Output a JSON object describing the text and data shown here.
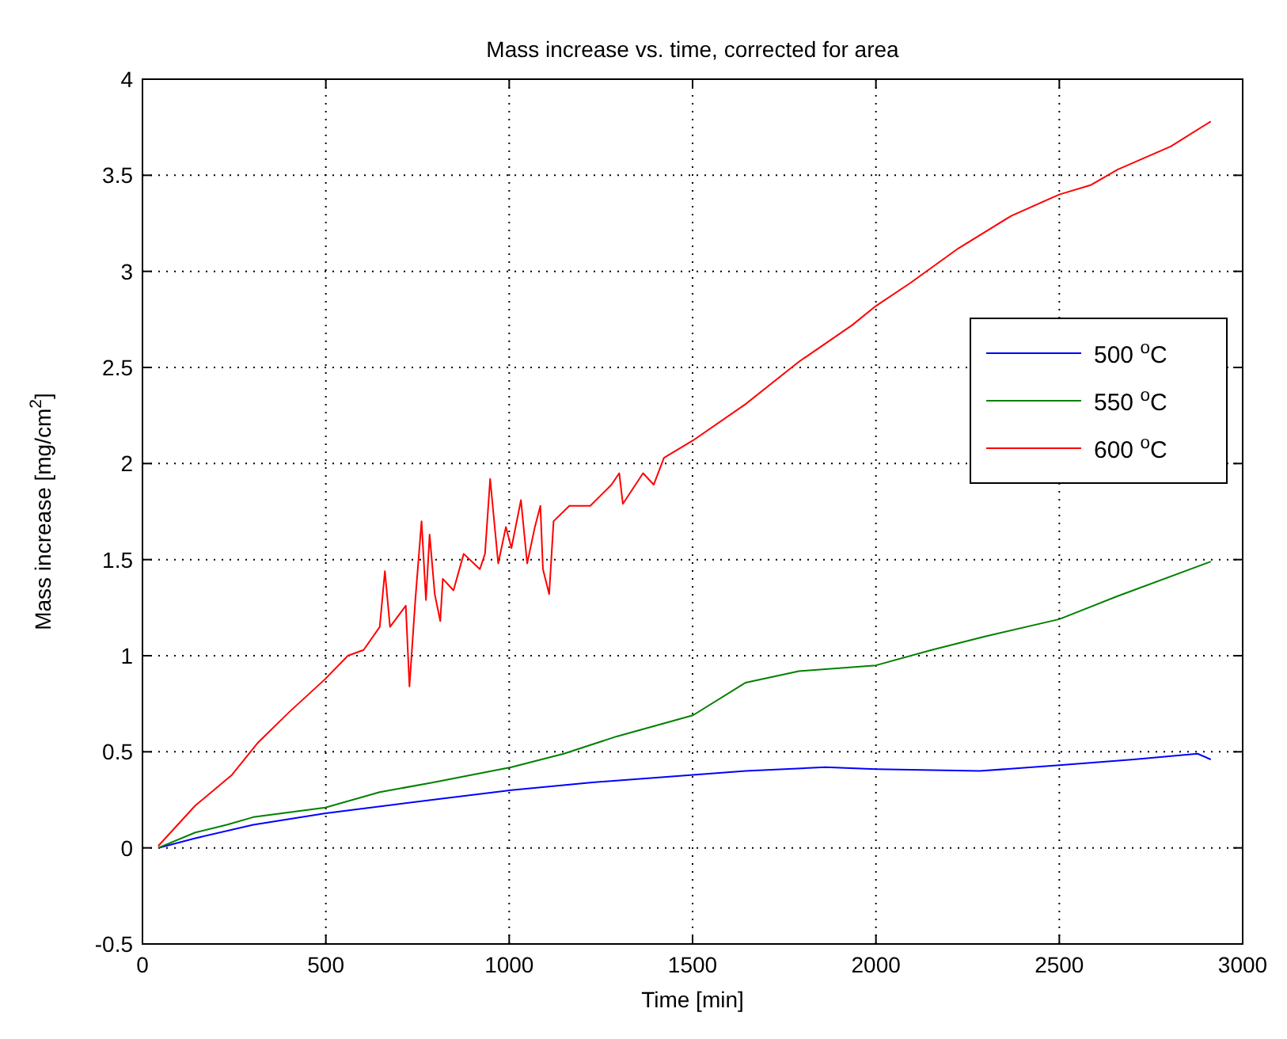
{
  "chart_data": {
    "type": "line",
    "title": "Mass increase vs. time, corrected for area",
    "xlabel": "Time [min]",
    "ylabel": "Mass increase [mg/cm$^{2}$]",
    "xlim": [
      0,
      3000
    ],
    "xticks": [
      0,
      500,
      1000,
      1500,
      2000,
      2500,
      3000
    ],
    "ylim": [
      -0.5,
      4
    ],
    "yticks": [
      -0.5,
      0,
      0.5,
      1,
      1.5,
      2,
      2.5,
      3,
      3.5,
      4
    ],
    "grid": true,
    "legend": "right",
    "line_style": "solid",
    "marker": "none",
    "series": [
      {
        "name": "500 $^{o}$C",
        "color": "#0000ff",
        "x": [
          43,
          144,
          302,
          499,
          790,
          1006,
          1221,
          1501,
          1645,
          1862,
          2000,
          2283,
          2500,
          2703,
          2877,
          2913
        ],
        "values": [
          0,
          0.05,
          0.12,
          0.18,
          0.25,
          0.3,
          0.34,
          0.38,
          0.4,
          0.42,
          0.41,
          0.4,
          0.43,
          0.46,
          0.49,
          0.46
        ]
      },
      {
        "name": "550 $^{o}$C",
        "color": "#008000",
        "x": [
          43,
          144,
          230,
          302,
          499,
          647,
          790,
          1006,
          1149,
          1293,
          1501,
          1645,
          1790,
          2000,
          2152,
          2297,
          2500,
          2659,
          2913
        ],
        "values": [
          0,
          0.08,
          0.12,
          0.16,
          0.21,
          0.29,
          0.34,
          0.42,
          0.49,
          0.58,
          0.69,
          0.86,
          0.92,
          0.95,
          1.03,
          1.1,
          1.19,
          1.31,
          1.49
        ]
      },
      {
        "name": "600 $^{o}$C",
        "color": "#ff0000",
        "x": [
          43,
          144,
          244,
          316,
          402,
          499,
          560,
          603,
          647,
          661,
          675,
          718,
          728,
          744,
          761,
          773,
          783,
          797,
          812,
          819,
          848,
          876,
          920,
          934,
          948,
          970,
          991,
          1006,
          1032,
          1049,
          1070,
          1085,
          1092,
          1109,
          1121,
          1164,
          1221,
          1279,
          1300,
          1310,
          1365,
          1394,
          1422,
          1501,
          1645,
          1790,
          1935,
          2000,
          2094,
          2225,
          2370,
          2500,
          2587,
          2659,
          2804,
          2913
        ],
        "values": [
          0.01,
          0.22,
          0.38,
          0.55,
          0.71,
          0.88,
          1.0,
          1.03,
          1.15,
          1.44,
          1.15,
          1.26,
          0.84,
          1.29,
          1.7,
          1.29,
          1.63,
          1.32,
          1.18,
          1.4,
          1.34,
          1.53,
          1.45,
          1.53,
          1.92,
          1.48,
          1.67,
          1.56,
          1.81,
          1.48,
          1.67,
          1.78,
          1.45,
          1.32,
          1.7,
          1.78,
          1.78,
          1.89,
          1.95,
          1.79,
          1.95,
          1.89,
          2.03,
          2.12,
          2.31,
          2.53,
          2.72,
          2.82,
          2.94,
          3.12,
          3.29,
          3.4,
          3.45,
          3.53,
          3.65,
          3.78
        ]
      }
    ]
  }
}
